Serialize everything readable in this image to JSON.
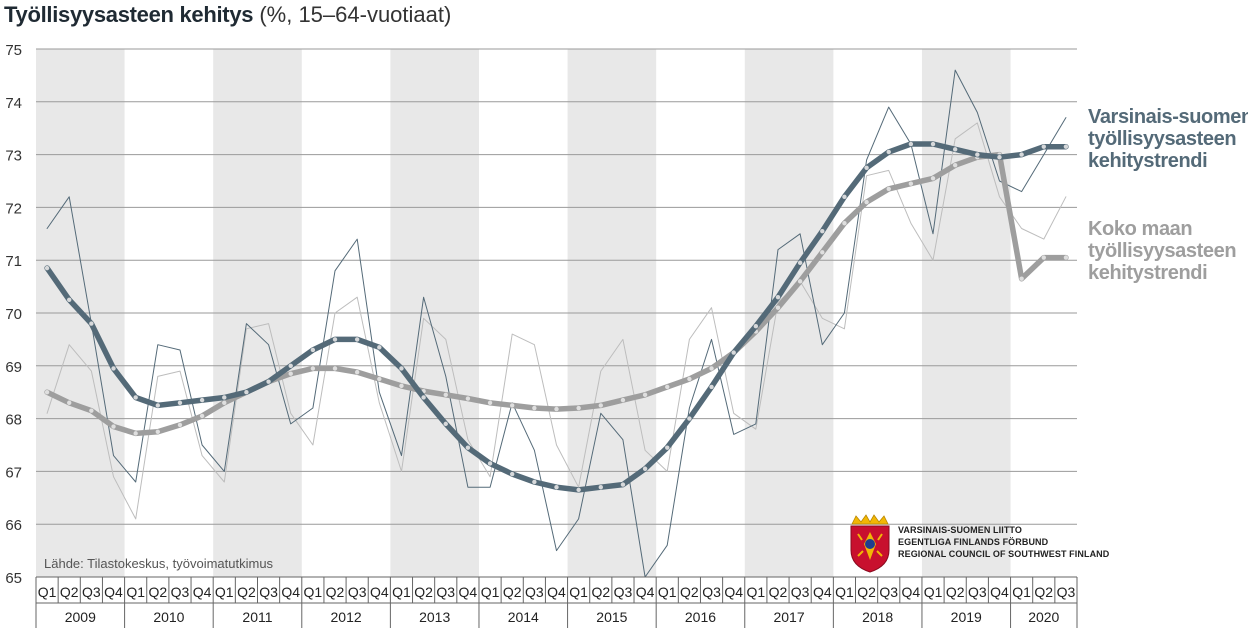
{
  "title": {
    "main": "Työllisyysasteen kehitys",
    "sub": "(%, 15–64-vuotiaat)"
  },
  "source": "Lähde: Tilastokeskus, työvoimatutkimus",
  "legend": {
    "varsinais_suomi": [
      "Varsinais-suomen",
      "työllisyysasteen",
      "kehitystrendi"
    ],
    "koko_maa": [
      "Koko maan",
      "työllisyysasteen",
      "kehitystrendi"
    ]
  },
  "logo": {
    "lines": [
      "VARSINAIS-SUOMEN LIITTO",
      "EGENTLIGA FINLANDS FÖRBUND",
      "REGIONAL COUNCIL OF SOUTHWEST FINLAND"
    ],
    "colors": {
      "shield": "#c8102e",
      "crown": "#f2b705"
    }
  },
  "colors": {
    "vs_trend": "#546a78",
    "vs_raw": "#546a78",
    "km_trend": "#9e9e9e",
    "km_raw": "#bdbdbd",
    "band": "#e8e8e8",
    "grid": "#9a9a9a"
  },
  "chart_data": {
    "type": "line",
    "ylim": [
      65,
      75
    ],
    "yticks": [
      65,
      66,
      67,
      68,
      69,
      70,
      71,
      72,
      73,
      74,
      75
    ],
    "years": [
      "2009",
      "2010",
      "2011",
      "2012",
      "2013",
      "2014",
      "2015",
      "2016",
      "2017",
      "2018",
      "2019",
      "2020"
    ],
    "quarters": [
      "Q1",
      "Q2",
      "Q3",
      "Q4"
    ],
    "n_quarters": 47,
    "series": [
      {
        "key": "vs_raw",
        "values": [
          71.6,
          72.2,
          69.8,
          67.3,
          66.8,
          69.4,
          69.3,
          67.5,
          67.0,
          69.8,
          69.4,
          67.9,
          68.2,
          70.8,
          71.4,
          68.5,
          67.3,
          70.3,
          68.8,
          66.7,
          66.7,
          68.3,
          67.4,
          65.5,
          66.1,
          68.1,
          67.6,
          65.0,
          65.6,
          68.2,
          69.5,
          67.7,
          67.9,
          71.2,
          71.5,
          69.4,
          70.0,
          72.9,
          73.9,
          73.2,
          71.5,
          74.6,
          73.8,
          72.5,
          72.3,
          73.0,
          73.7
        ]
      },
      {
        "key": "km_raw",
        "values": [
          68.1,
          69.4,
          68.9,
          66.9,
          66.1,
          68.8,
          68.9,
          67.3,
          66.8,
          69.7,
          69.8,
          68.1,
          67.5,
          70.0,
          70.3,
          68.3,
          67.0,
          69.9,
          69.5,
          67.6,
          66.9,
          69.6,
          69.4,
          67.5,
          66.7,
          68.9,
          69.5,
          67.4,
          67.0,
          69.5,
          70.1,
          68.1,
          67.8,
          70.2,
          70.6,
          69.9,
          69.7,
          72.6,
          72.7,
          71.7,
          71.0,
          73.3,
          73.6,
          72.2,
          71.6,
          71.4,
          72.2
        ]
      },
      {
        "key": "vs_trend",
        "name": "Varsinais-suomen työllisyysasteen kehitystrendi",
        "values": [
          70.85,
          70.25,
          69.8,
          68.95,
          68.4,
          68.25,
          68.3,
          68.35,
          68.4,
          68.5,
          68.7,
          69.0,
          69.3,
          69.5,
          69.5,
          69.35,
          68.95,
          68.4,
          67.9,
          67.45,
          67.15,
          66.95,
          66.8,
          66.7,
          66.65,
          66.7,
          66.75,
          67.05,
          67.45,
          68.0,
          68.6,
          69.25,
          69.75,
          70.3,
          70.95,
          71.55,
          72.2,
          72.75,
          73.05,
          73.2,
          73.2,
          73.1,
          73.0,
          72.95,
          73.0,
          73.15,
          73.15
        ]
      },
      {
        "key": "km_trend",
        "name": "Koko maan työllisyysasteen kehitystrendi",
        "values": [
          68.5,
          68.3,
          68.15,
          67.85,
          67.72,
          67.75,
          67.88,
          68.05,
          68.3,
          68.5,
          68.7,
          68.85,
          68.95,
          68.95,
          68.88,
          68.75,
          68.62,
          68.52,
          68.45,
          68.38,
          68.3,
          68.25,
          68.2,
          68.18,
          68.2,
          68.25,
          68.35,
          68.45,
          68.6,
          68.75,
          68.95,
          69.25,
          69.65,
          70.1,
          70.6,
          71.15,
          71.7,
          72.1,
          72.35,
          72.45,
          72.55,
          72.8,
          72.95,
          73.0,
          70.65,
          71.05,
          71.05
        ]
      }
    ]
  }
}
